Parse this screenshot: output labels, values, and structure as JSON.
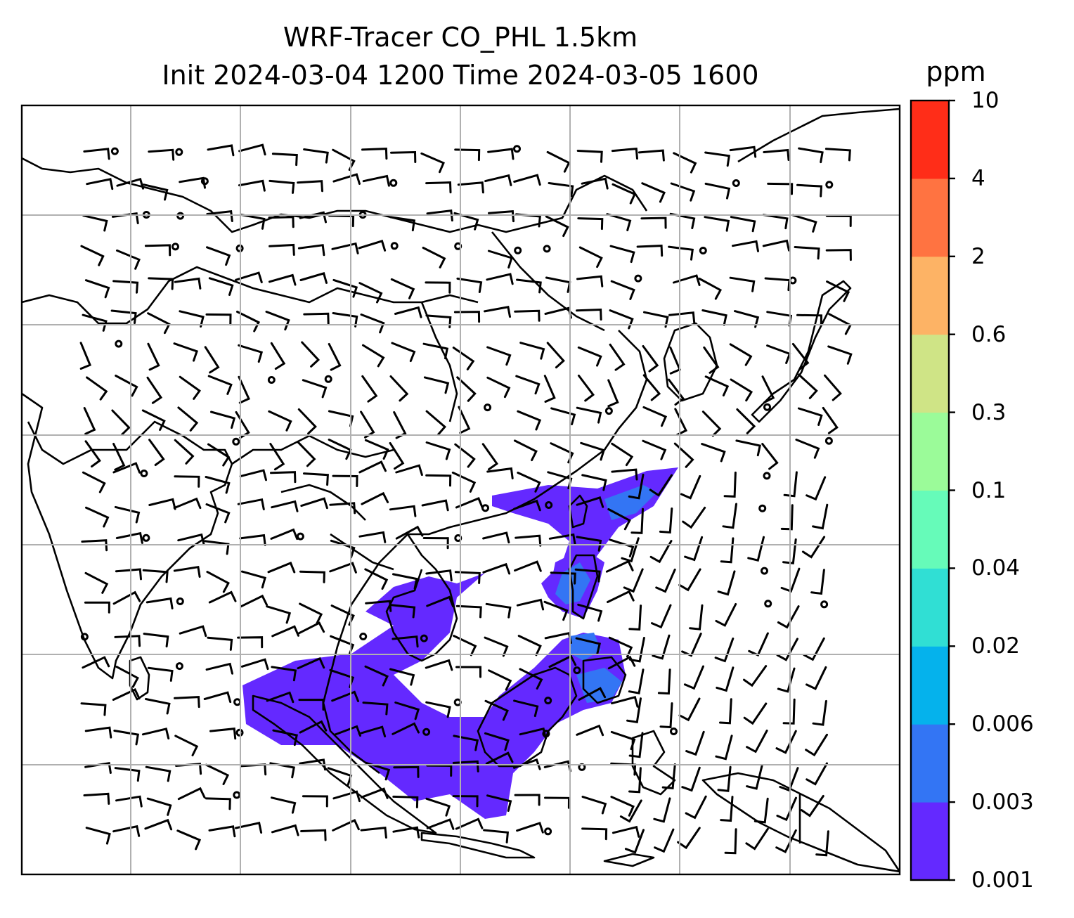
{
  "title": {
    "line1": "WRF-Tracer CO_PHL 1.5km",
    "line2": "Init 2024-03-04 1200 Time 2024-03-05 1600"
  },
  "colorbar": {
    "unit": "ppm",
    "levels": [
      "0.001",
      "0.003",
      "0.006",
      "0.02",
      "0.04",
      "0.1",
      "0.3",
      "0.6",
      "2",
      "4",
      "10"
    ],
    "colors": [
      "#6429ff",
      "#3375f4",
      "#05b2ec",
      "#30dfd4",
      "#66fbb9",
      "#9bfb99",
      "#cfe486",
      "#fdb365",
      "#ff7341",
      "#ff2d18"
    ]
  },
  "map": {
    "gridlines": "on",
    "coastline_color": "#000000",
    "barb_color": "#000000",
    "grid_color": "#b0b0b0"
  }
}
